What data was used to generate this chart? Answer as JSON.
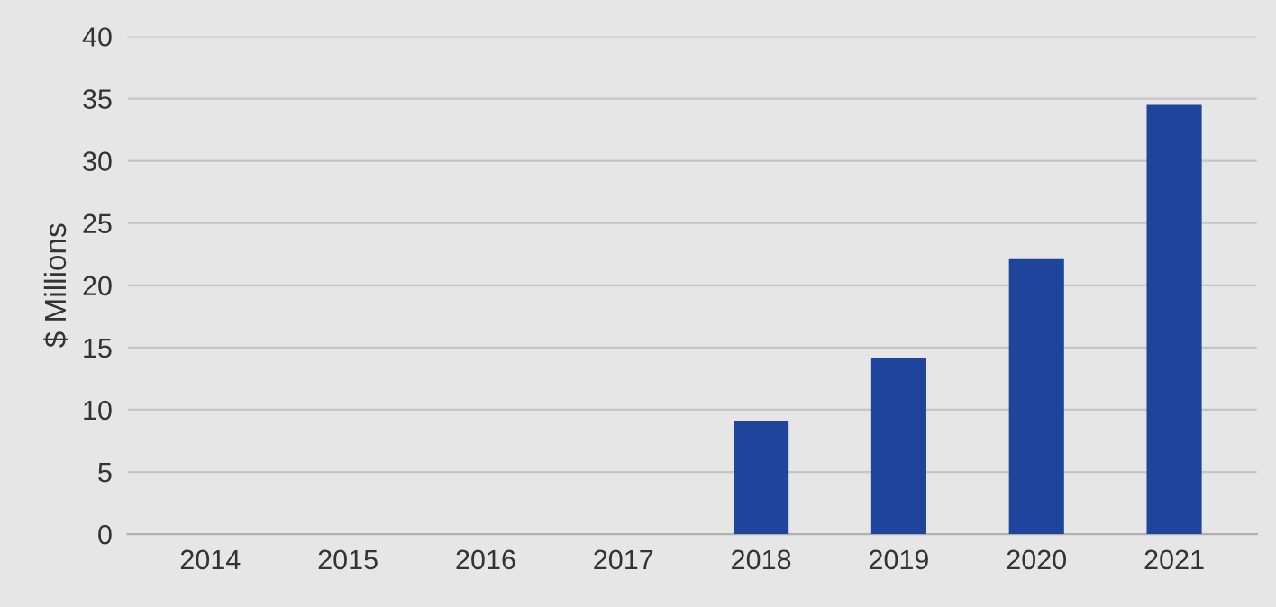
{
  "chart_data": {
    "type": "bar",
    "ylabel": "$ Millions",
    "categories": [
      "2014",
      "2015",
      "2016",
      "2017",
      "2018",
      "2019",
      "2020",
      "2021"
    ],
    "values": [
      0,
      0,
      0,
      0,
      9.1,
      14.2,
      22.1,
      34.5
    ],
    "color": "#1f449c",
    "ylim": [
      0,
      40
    ],
    "yticks": [
      0,
      5,
      10,
      15,
      20,
      25,
      30,
      35,
      40
    ],
    "grid": "y"
  }
}
